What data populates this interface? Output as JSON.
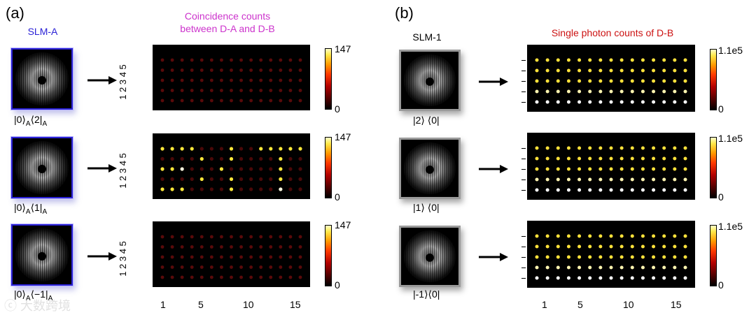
{
  "panel_a": {
    "tag": "(a)",
    "slm_label": "SLM-A",
    "plot_title_line1": "Coincidence counts",
    "plot_title_line2": "between D-A and D-B",
    "rows": [
      {
        "ket_main": "|0⟩",
        "sub1": "A",
        "bra_main": "⟨2|",
        "sub2": "A"
      },
      {
        "ket_main": "|0⟩",
        "sub1": "A",
        "bra_main": "⟨1|",
        "sub2": "A"
      },
      {
        "ket_main": "|0⟩",
        "sub1": "A",
        "bra_main": "⟨−1|",
        "sub2": "A"
      }
    ],
    "colorbar_max": "147",
    "colorbar_min": "0",
    "y_tick_labels": "1 2 3 4 5"
  },
  "panel_b": {
    "tag": "(b)",
    "slm_label": "SLM-1",
    "plot_title": "Single photon counts of D-B",
    "rows": [
      {
        "label": "|2⟩ ⟨0|"
      },
      {
        "label": "|1⟩ ⟨0|"
      },
      {
        "label": "|-1⟩⟨0|"
      }
    ],
    "colorbar_max": "1.1e5",
    "colorbar_min": "0"
  },
  "x_axis": {
    "ticks": [
      "1",
      "5",
      "10",
      "15"
    ]
  },
  "watermark": "ⓒ 大数跨境",
  "colors": {
    "title_a": "#cc33cc",
    "slm_a": "#2b22d6",
    "title_b": "#cc1111",
    "plot_bg": "#000000"
  },
  "chart_data": {
    "type": "heatmap",
    "columns": 15,
    "rows": 5,
    "coincidence_max": 147,
    "single_max": 110000,
    "bright_points_row2": [
      [
        1,
        1
      ],
      [
        2,
        1
      ],
      [
        3,
        1
      ],
      [
        1,
        3
      ],
      [
        2,
        3
      ],
      [
        3,
        3
      ],
      [
        1,
        5
      ],
      [
        2,
        5
      ],
      [
        3,
        5
      ],
      [
        4,
        5
      ],
      [
        5,
        2
      ],
      [
        5,
        4
      ],
      [
        7,
        3
      ],
      [
        8,
        1
      ],
      [
        8,
        2
      ],
      [
        8,
        4
      ],
      [
        8,
        5
      ],
      [
        11,
        5
      ],
      [
        12,
        5
      ],
      [
        13,
        1
      ],
      [
        13,
        2
      ],
      [
        13,
        3
      ],
      [
        13,
        4
      ],
      [
        13,
        5
      ],
      [
        14,
        5
      ],
      [
        15,
        5
      ]
    ]
  }
}
